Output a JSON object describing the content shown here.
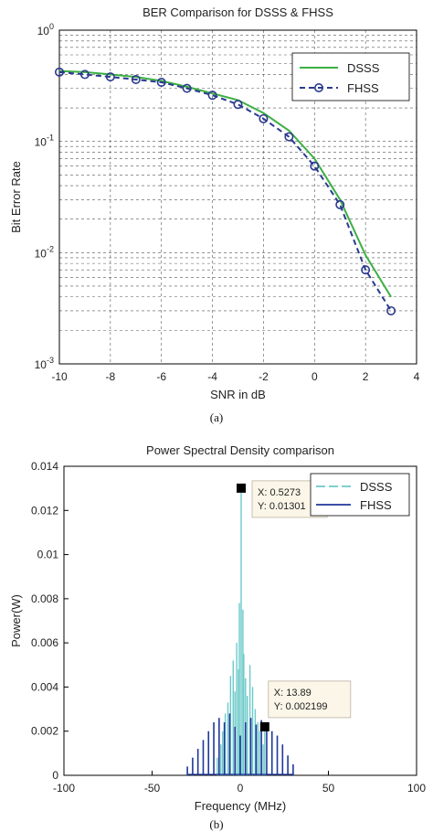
{
  "chart_data": [
    {
      "type": "line",
      "title": "BER Comparison for DSSS & FHSS",
      "xlabel": "SNR in dB",
      "ylabel": "Bit Error Rate",
      "xlim": [
        -10,
        4
      ],
      "ylim": [
        0.001,
        1
      ],
      "yscale": "log",
      "grid": true,
      "legend": "top-right",
      "xticks": [
        "-10",
        "-8",
        "-6",
        "-4",
        "-2",
        "0",
        "2",
        "4"
      ],
      "yticks": [
        {
          "base": "10",
          "exp": "0"
        },
        {
          "base": "10",
          "exp": "-1"
        },
        {
          "base": "10",
          "exp": "-2"
        },
        {
          "base": "10",
          "exp": "-3"
        }
      ],
      "x": [
        -10,
        -9,
        -8,
        -7,
        -6,
        -5,
        -4,
        -3,
        -2,
        -1,
        0,
        1,
        2,
        3
      ],
      "series": [
        {
          "name": "DSSS",
          "color": "#3cb043",
          "style": "solid",
          "values": [
            0.43,
            0.42,
            0.4,
            0.38,
            0.35,
            0.31,
            0.27,
            0.235,
            0.18,
            0.125,
            0.07,
            0.03,
            0.0095,
            0.004
          ]
        },
        {
          "name": "FHSS",
          "color": "#2b3a8f",
          "style": "dashed-circle",
          "values": [
            0.42,
            0.4,
            0.38,
            0.36,
            0.34,
            0.3,
            0.26,
            0.215,
            0.16,
            0.11,
            0.06,
            0.027,
            0.007,
            0.003
          ]
        }
      ],
      "caption": "(a)"
    },
    {
      "type": "line",
      "title": "Power Spectral Density comparison",
      "xlabel": "Frequency (MHz)",
      "ylabel": "Power(W)",
      "xlim": [
        -100,
        100
      ],
      "ylim": [
        0,
        0.014
      ],
      "grid": false,
      "legend": "top-right",
      "xticks": [
        "-100",
        "-50",
        "0",
        "50",
        "100"
      ],
      "yticks": [
        "0",
        "0.002",
        "0.004",
        "0.006",
        "0.008",
        "0.01",
        "0.012",
        "0.014"
      ],
      "series": [
        {
          "name": "DSSS",
          "color": "#6cc9c9",
          "style": "dashed",
          "x": [
            -13,
            -11,
            -10,
            -8.5,
            -7,
            -5.5,
            -4,
            -3,
            -2,
            -1,
            -0.5,
            0.5273,
            1.5,
            2,
            3,
            4,
            5.5,
            7,
            8.5,
            10,
            11,
            13,
            13.89
          ],
          "values": [
            0.0008,
            0.0014,
            0.002,
            0.0028,
            0.0033,
            0.0045,
            0.0052,
            0.0038,
            0.006,
            0.0048,
            0.0078,
            0.01301,
            0.0075,
            0.0055,
            0.0044,
            0.0036,
            0.005,
            0.004,
            0.003,
            0.0024,
            0.002,
            0.0014,
            0.002199
          ]
        },
        {
          "name": "FHSS",
          "color": "#1f3799",
          "style": "solid",
          "x": [
            -30,
            -27,
            -24,
            -21,
            -18,
            -15,
            -12,
            -9,
            -6,
            -3,
            0,
            3,
            6,
            9,
            12,
            15,
            18,
            21,
            24,
            27,
            30
          ],
          "values": [
            0.0004,
            0.0008,
            0.0012,
            0.0016,
            0.002,
            0.0024,
            0.0026,
            0.0024,
            0.0028,
            0.0022,
            0.0018,
            0.0024,
            0.0026,
            0.0023,
            0.0025,
            0.0022,
            0.002,
            0.0018,
            0.0014,
            0.0009,
            0.0005
          ]
        }
      ],
      "datatips": [
        {
          "x": 0.5273,
          "y": 0.01301,
          "lines": [
            "X: 0.5273",
            "Y: 0.01301"
          ]
        },
        {
          "x": 13.89,
          "y": 0.002199,
          "lines": [
            "X: 13.89",
            "Y: 0.002199"
          ]
        }
      ],
      "caption": "(b)"
    }
  ]
}
